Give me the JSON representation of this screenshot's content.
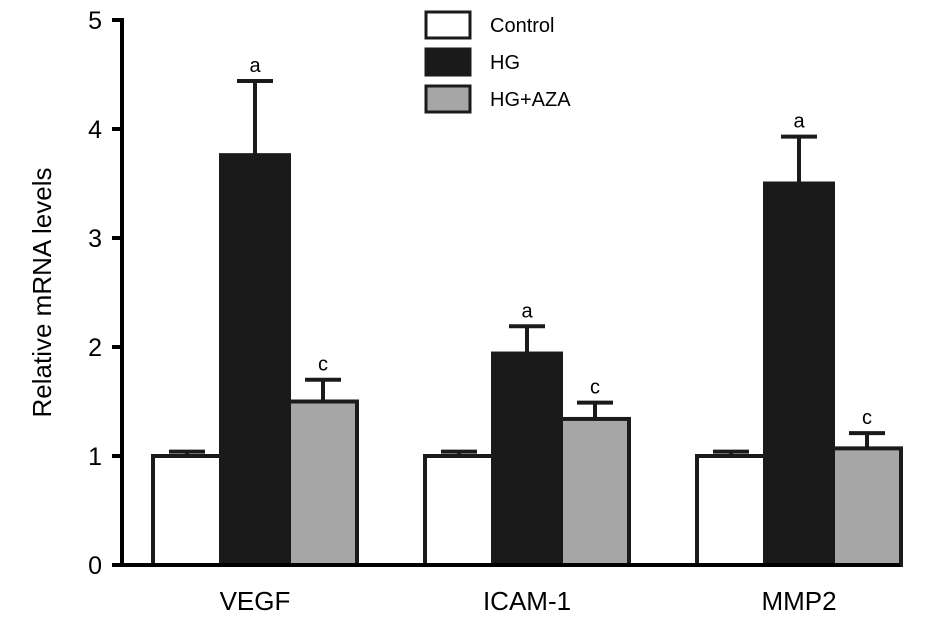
{
  "chart_data": {
    "type": "bar",
    "title": "",
    "xlabel": "",
    "ylabel": "Relative mRNA levels",
    "ylim": [
      0,
      5
    ],
    "yticks": [
      "0",
      "1",
      "2",
      "3",
      "4",
      "5"
    ],
    "categories": [
      "VEGF",
      "ICAM-1",
      "MMP2"
    ],
    "grid": false,
    "legend_position": "top-center",
    "series": [
      {
        "name": "Control",
        "color": "#ffffff",
        "values": [
          1.0,
          1.0,
          1.0
        ],
        "errors": [
          0.04,
          0.04,
          0.04
        ],
        "annotations": [
          "",
          "",
          ""
        ]
      },
      {
        "name": "HG",
        "color": "#1a1a1a",
        "values": [
          3.76,
          1.94,
          3.5
        ],
        "errors": [
          0.68,
          0.25,
          0.43
        ],
        "annotations": [
          "a",
          "a",
          "a"
        ]
      },
      {
        "name": "HG+AZA",
        "color": "#a6a6a6",
        "values": [
          1.5,
          1.34,
          1.07
        ],
        "errors": [
          0.2,
          0.15,
          0.14
        ],
        "annotations": [
          "c",
          "c",
          "c"
        ]
      }
    ]
  }
}
